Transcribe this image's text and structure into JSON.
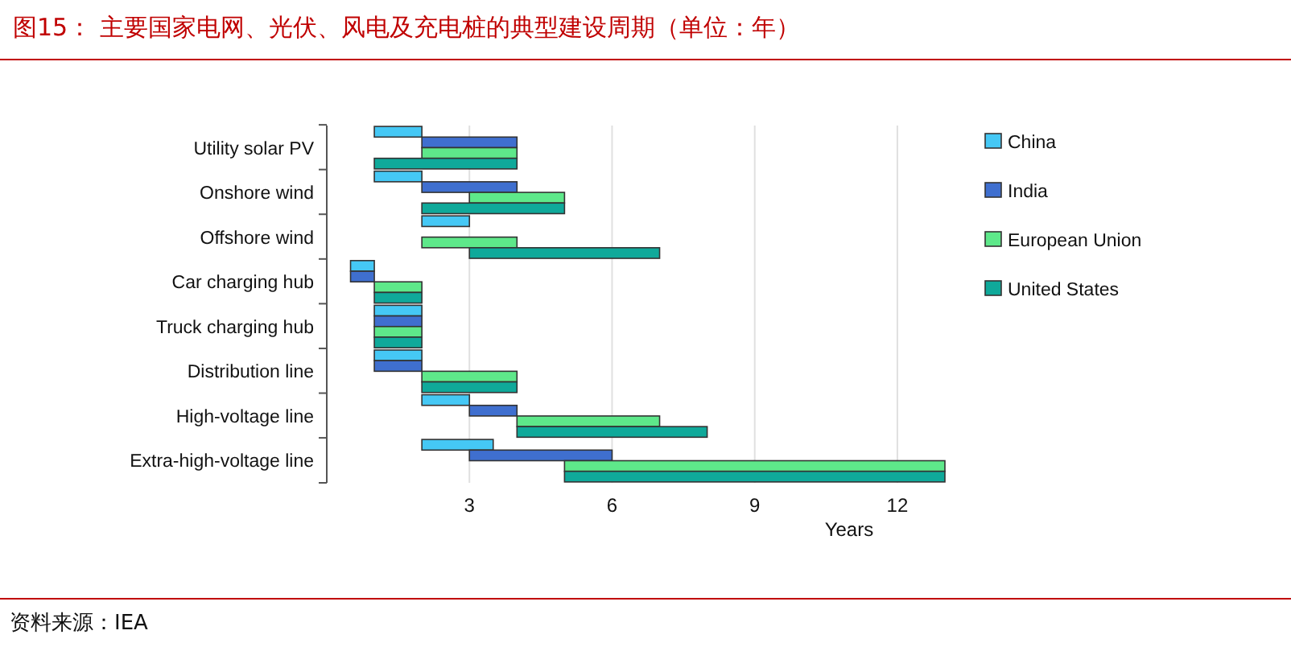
{
  "chart_data": {
    "type": "bar",
    "orientation": "horizontal",
    "title": "图15：  主要国家电网、光伏、风电及充电桩的典型建设周期（单位：年）",
    "xlabel": "Years",
    "categories": [
      "Utility solar PV",
      "Onshore wind",
      "Offshore wind",
      "Car charging hub",
      "Truck charging hub",
      "Distribution line",
      "High-voltage line",
      "Extra-high-voltage line"
    ],
    "series": [
      {
        "name": "China",
        "color": "#45c8f5",
        "base": [
          1,
          1,
          2,
          0.5,
          1,
          1,
          2,
          2
        ],
        "values": [
          1,
          1,
          1,
          0.5,
          1,
          1,
          1,
          1.5
        ]
      },
      {
        "name": "India",
        "color": "#3f6fcf",
        "base": [
          2,
          2,
          null,
          0.5,
          1,
          1,
          3,
          3
        ],
        "values": [
          2,
          2,
          null,
          0.5,
          1,
          1,
          1,
          3
        ]
      },
      {
        "name": "European Union",
        "color": "#5ee88a",
        "base": [
          2,
          3,
          2,
          1,
          1,
          2,
          4,
          5
        ],
        "values": [
          2,
          2,
          2,
          1,
          1,
          2,
          3,
          8
        ]
      },
      {
        "name": "United States",
        "color": "#0fa99a",
        "base": [
          1,
          2,
          3,
          1,
          1,
          2,
          4,
          5
        ],
        "values": [
          3,
          3,
          4,
          1,
          1,
          2,
          4,
          8
        ]
      }
    ],
    "xlim": [
      0,
      13
    ],
    "xticks": [
      3,
      6,
      9,
      12
    ],
    "grid": "x",
    "legend": "right",
    "annotations": [
      "资料来源：IEA"
    ]
  }
}
